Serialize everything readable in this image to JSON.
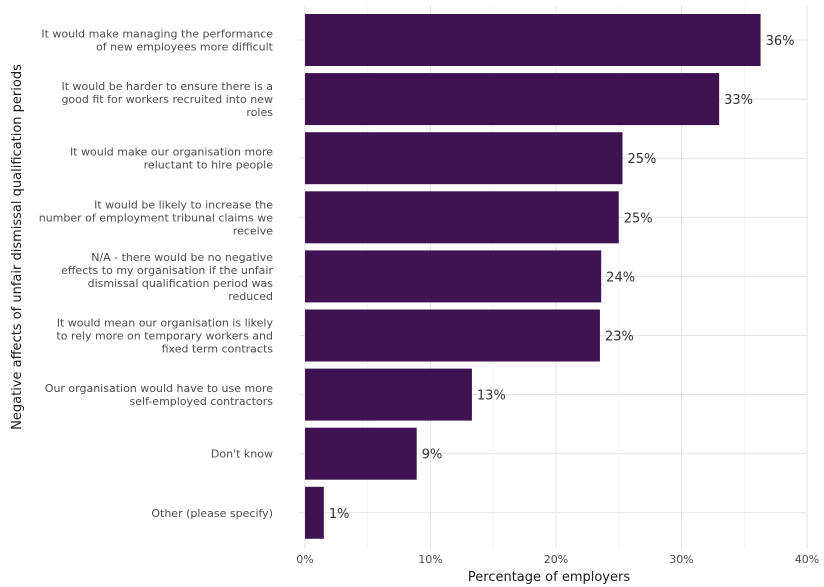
{
  "chart_data": {
    "type": "bar",
    "orientation": "horizontal",
    "xlabel": "Percentage of employers",
    "ylabel": "Negative affects of unfair dismissal qualification periods",
    "xlim": [
      0,
      40
    ],
    "x_ticks": [
      "0%",
      "10%",
      "20%",
      "30%",
      "40%"
    ],
    "grid": true,
    "bar_color": "#3f1351",
    "categories": [
      [
        "It would make managing the performance",
        "of new employees more difficult"
      ],
      [
        "It would be harder to ensure there is a",
        "good fit for workers recruited into new",
        "roles"
      ],
      [
        "It would make our organisation more",
        "reluctant to hire people"
      ],
      [
        "It would be likely to increase the",
        "number of employment tribunal claims we",
        "receive"
      ],
      [
        "N/A - there would be no negative",
        "effects to my organisation if the unfair",
        "dismissal qualification period was",
        "reduced"
      ],
      [
        "It would mean our organisation is likely",
        "to rely more on temporary workers and",
        "fixed term contracts"
      ],
      [
        "Our organisation would have to use more",
        "self-employed contractors"
      ],
      [
        "Don't know"
      ],
      [
        "Other (please specify)"
      ]
    ],
    "values": [
      36.3,
      33.0,
      25.3,
      25.0,
      23.6,
      23.5,
      13.3,
      8.9,
      1.5
    ],
    "data_labels": [
      "36%",
      "33%",
      "25%",
      "25%",
      "24%",
      "23%",
      "13%",
      "9%",
      "1%"
    ]
  }
}
